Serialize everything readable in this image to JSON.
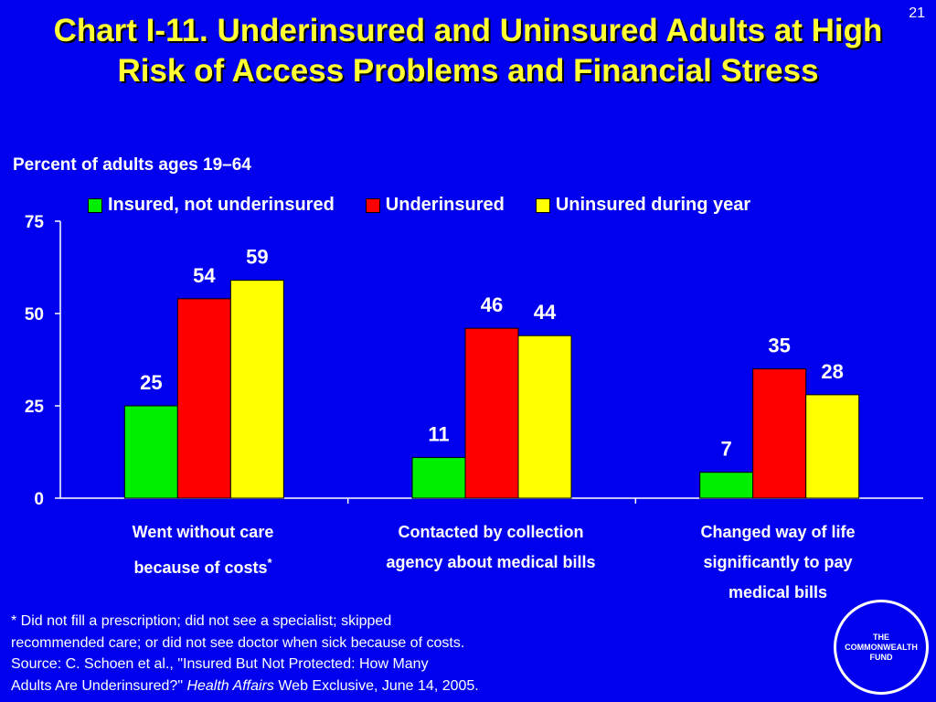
{
  "slide_number": "21",
  "title": "Chart I-11. Underinsured and Uninsured Adults at High Risk of Access Problems and Financial Stress",
  "chart_data": {
    "type": "bar",
    "ylabel": "Percent of adults ages 19–64",
    "ylim": [
      0,
      75
    ],
    "yticks": [
      "0",
      "25",
      "50",
      "75"
    ],
    "categories": [
      [
        "Went without care",
        "because of costs"
      ],
      [
        "Contacted by collection",
        "agency about medical bills"
      ],
      [
        "Changed way of life",
        "significantly to pay",
        "medical bills"
      ]
    ],
    "category_marks": [
      "*",
      "",
      ""
    ],
    "series": [
      {
        "name": "Insured, not underinsured",
        "color": "#00ee00",
        "values": [
          25,
          11,
          7
        ]
      },
      {
        "name": "Underinsured",
        "color": "#ff0000",
        "values": [
          54,
          46,
          35
        ]
      },
      {
        "name": "Uninsured during year",
        "color": "#ffff00",
        "values": [
          59,
          44,
          28
        ]
      }
    ],
    "legend_position": "top",
    "grid": false
  },
  "footnote": {
    "lines": [
      "* Did not fill a prescription; did not see a specialist; skipped",
      "recommended care; or did not see doctor when sick because of costs.",
      "Source: C. Schoen et al., \"Insured But Not Protected: How Many"
    ],
    "last_line_prefix": "Adults Are Underinsured?\" ",
    "last_line_italic": "Health Affairs",
    "last_line_suffix": " Web Exclusive, June 14, 2005."
  },
  "logo_text": "THE\nCOMMONWEALTH\nFUND",
  "colors": {
    "background": "#0000ee",
    "title": "#ffff33",
    "text": "#ffffff"
  }
}
